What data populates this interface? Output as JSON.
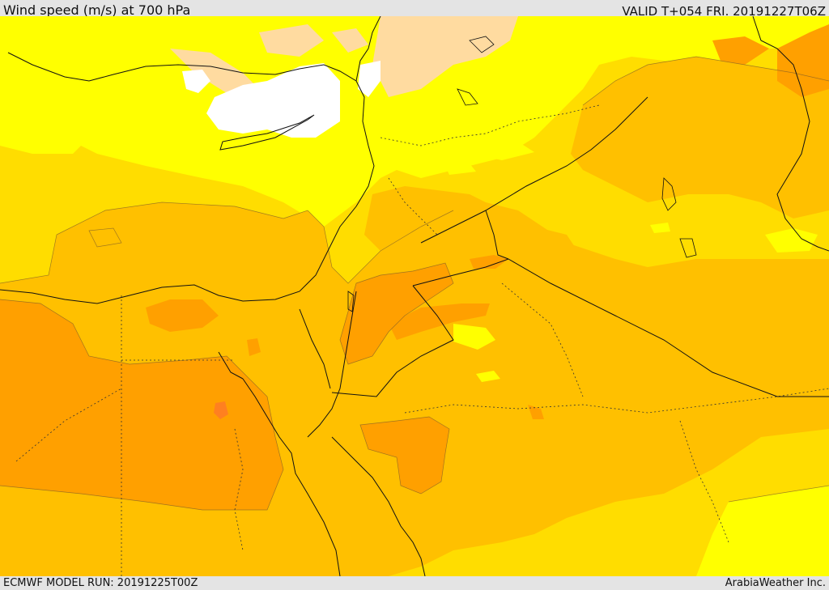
{
  "header": {
    "title": "Wind speed (m/s) at 700 hPa",
    "valid_time": "VALID T+054 FRI. 20191227T06Z"
  },
  "footer": {
    "model_run": "ECMWF MODEL RUN: 20191225T00Z",
    "credit": "ArabiaWeather Inc."
  },
  "palette": {
    "white": "#ffffff",
    "light_peach": "#ffdba0",
    "yellow": "#ffff00",
    "gold": "#ffdd00",
    "amber": "#ffc000",
    "orange": "#ffa000",
    "dark_orange": "#ff8020"
  }
}
